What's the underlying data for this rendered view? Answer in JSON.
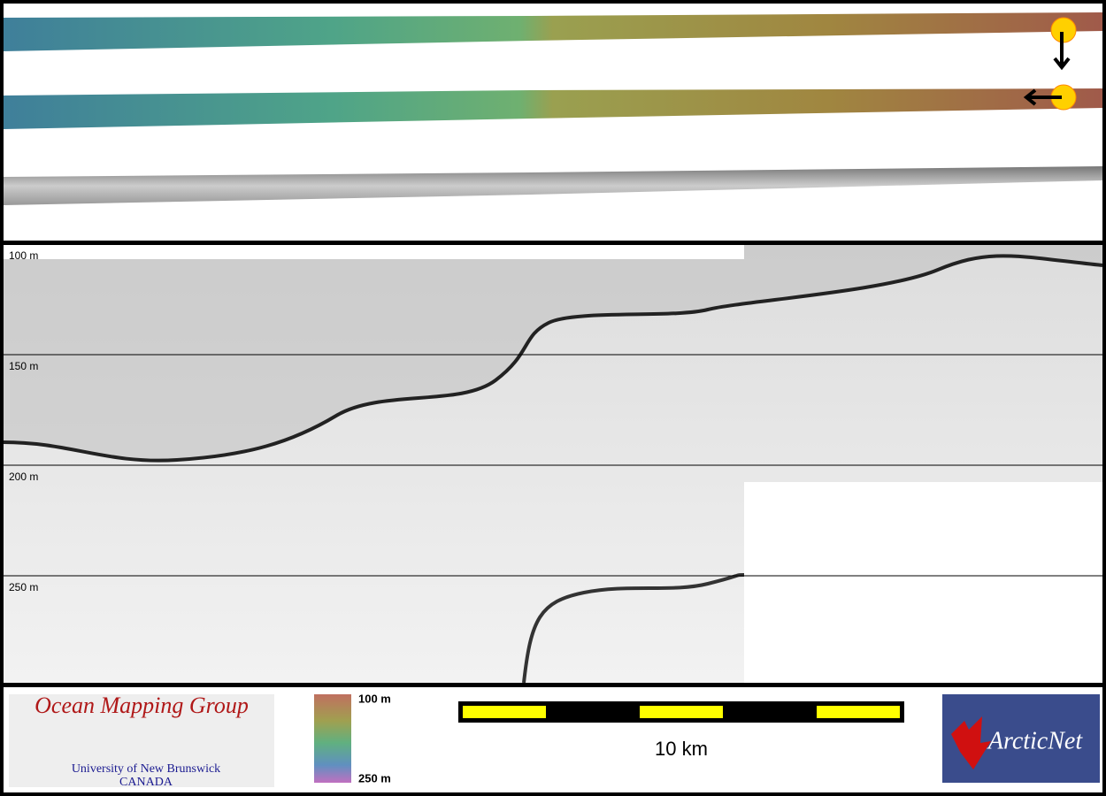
{
  "echogram": {
    "depth_labels": [
      "100 m",
      "150 m",
      "200 m",
      "250 m"
    ]
  },
  "legend": {
    "top": "100 m",
    "bottom": "250 m"
  },
  "scale_bar": {
    "label": "10 km"
  },
  "logo_left": {
    "title": "Ocean Mapping Group",
    "line1": "University of New Brunswick",
    "line2": "CANADA"
  },
  "logo_right": {
    "title": "ArcticNet"
  }
}
